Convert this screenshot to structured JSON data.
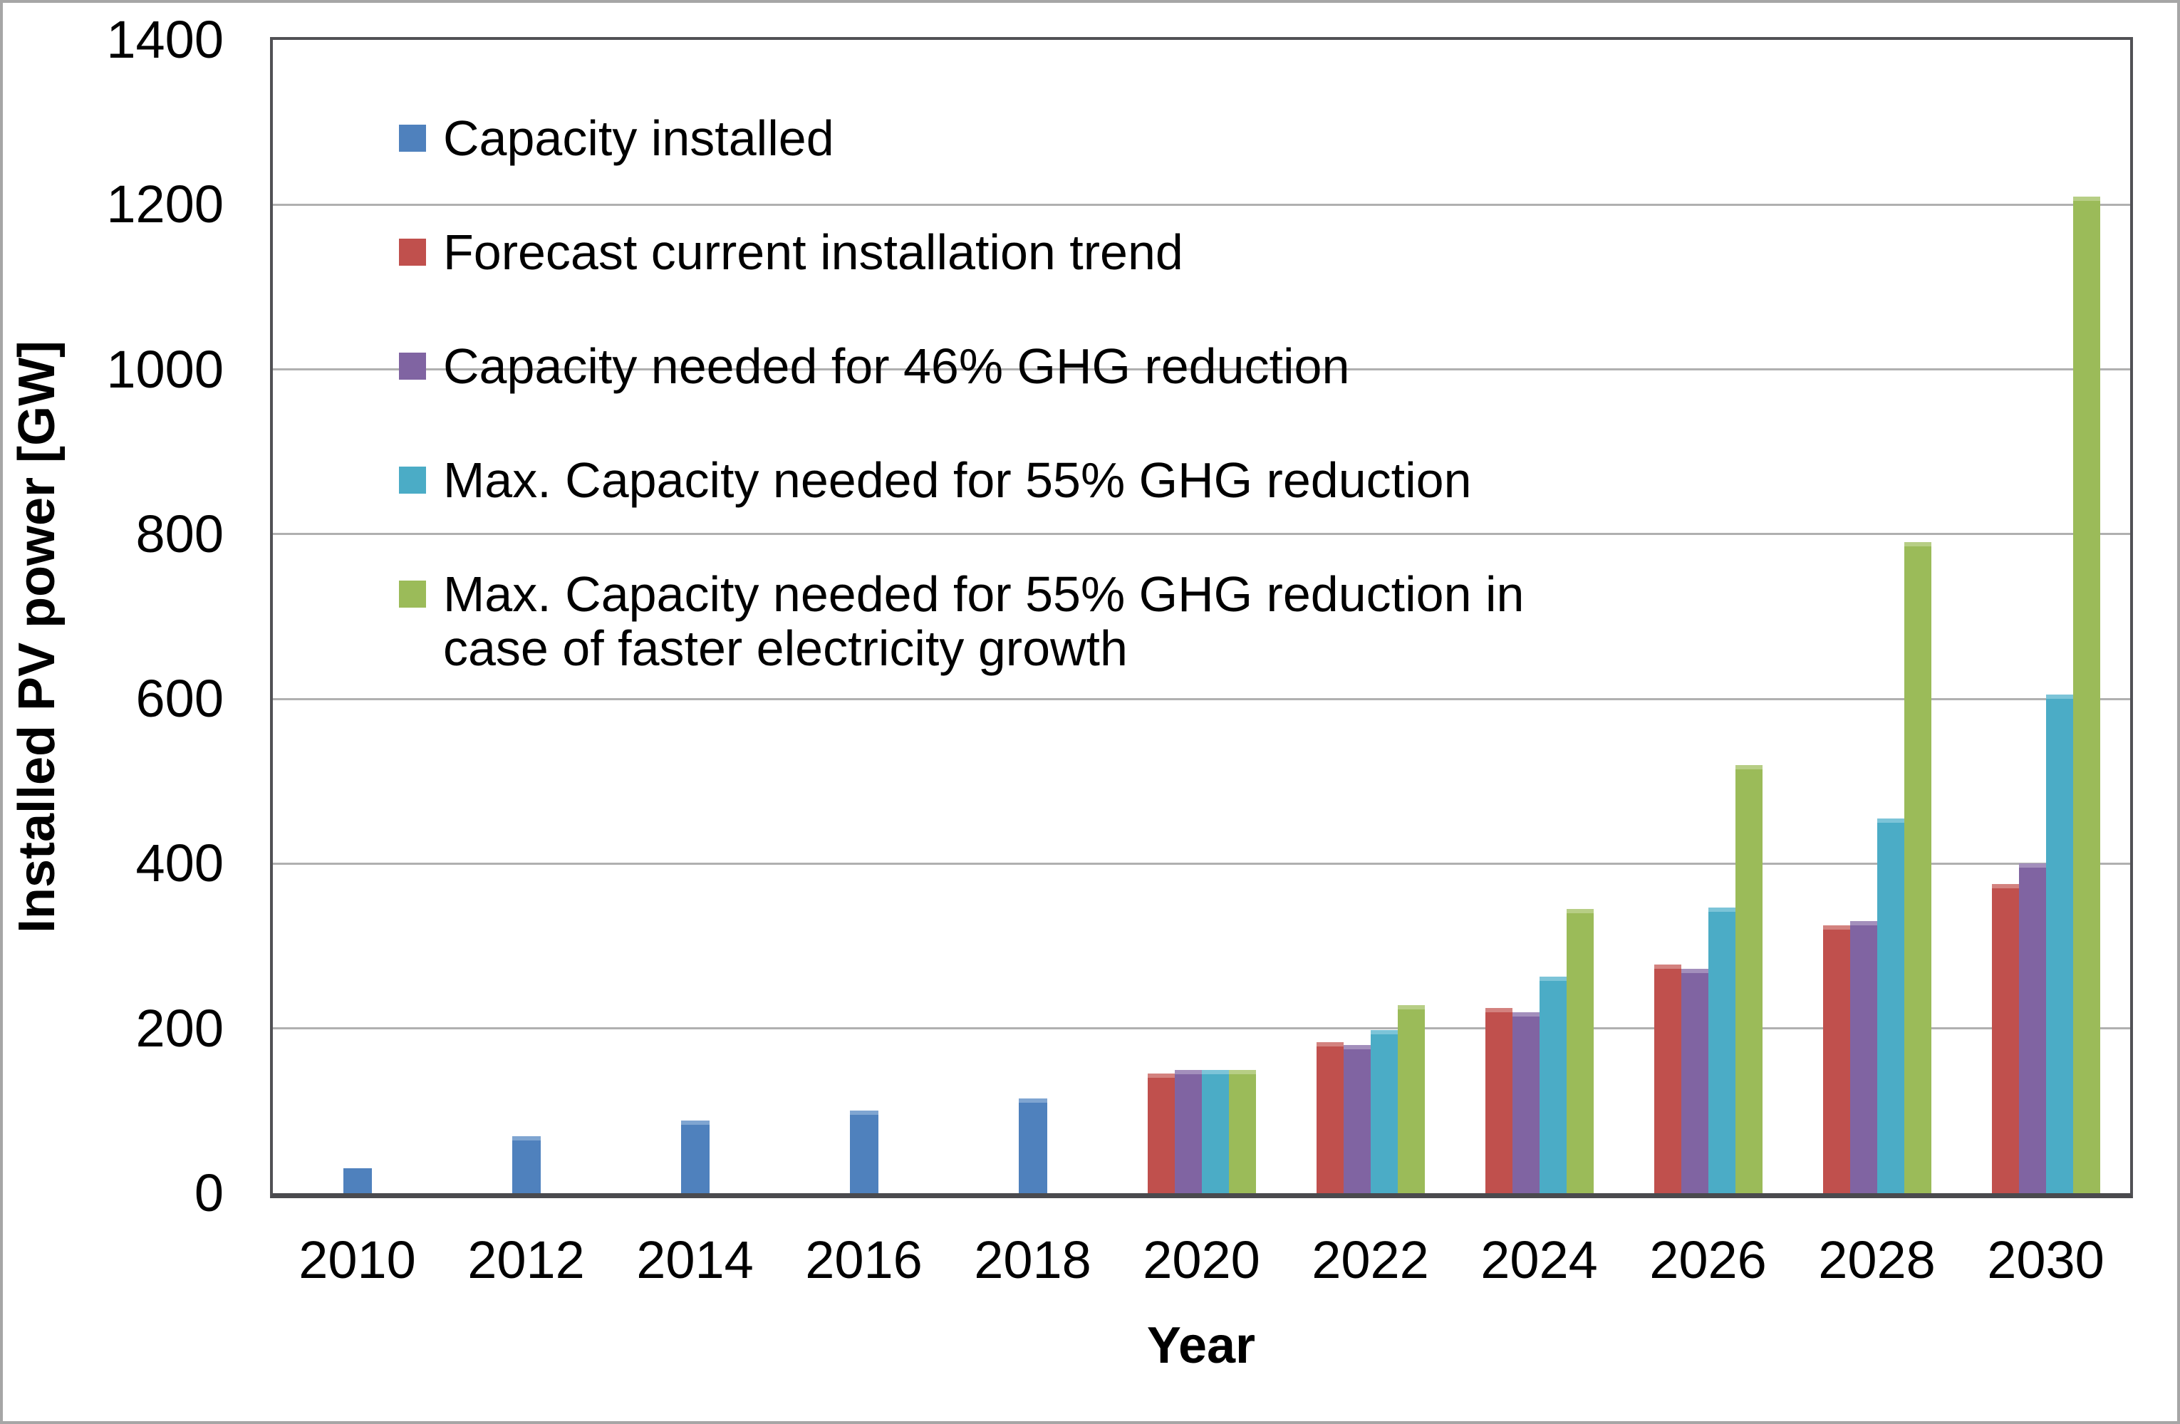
{
  "figure": {
    "background": "#ffffff",
    "border_color": "#a6a6a6"
  },
  "colors": {
    "plot_border": "#515155",
    "gridline": "#b0b0b0",
    "text": "#000000"
  },
  "chart_data": {
    "type": "bar",
    "title": "",
    "xlabel": "Year",
    "ylabel": "Installed PV power [GW]",
    "ylim": [
      0,
      1400
    ],
    "ytick_step": 200,
    "yticks": [
      0,
      200,
      400,
      600,
      800,
      1000,
      1200,
      1400
    ],
    "grid": "horizontal",
    "legend_position": "inside top-left",
    "categories": [
      "2010",
      "2012",
      "2014",
      "2016",
      "2018",
      "2020",
      "2022",
      "2024",
      "2026",
      "2028",
      "2030"
    ],
    "series": [
      {
        "name": "Capacity installed",
        "color": "#4F81BD",
        "color_light": "#7FA5D1",
        "values": [
          30,
          69,
          88,
          100,
          115,
          null,
          null,
          null,
          null,
          null,
          null
        ]
      },
      {
        "name": "Forecast current installation trend",
        "color": "#C0504D",
        "color_light": "#D3827F",
        "values": [
          null,
          null,
          null,
          null,
          null,
          145,
          183,
          225,
          278,
          325,
          375
        ]
      },
      {
        "name": "Capacity needed for 46% GHG reduction",
        "color": "#8064A2",
        "color_light": "#A38FBC",
        "values": [
          null,
          null,
          null,
          null,
          null,
          150,
          180,
          220,
          272,
          330,
          400
        ]
      },
      {
        "name": "Max. Capacity needed for 55% GHG reduction",
        "color": "#4BACC6",
        "color_light": "#7CC4D8",
        "values": [
          null,
          null,
          null,
          null,
          null,
          150,
          198,
          263,
          347,
          455,
          605
        ]
      },
      {
        "name": "Max. Capacity needed for 55% GHG reduction in\ncase of faster electricity growth",
        "color": "#9BBB59",
        "color_light": "#B7CE85",
        "values": [
          null,
          null,
          null,
          null,
          null,
          150,
          228,
          345,
          520,
          790,
          1210
        ]
      }
    ]
  }
}
